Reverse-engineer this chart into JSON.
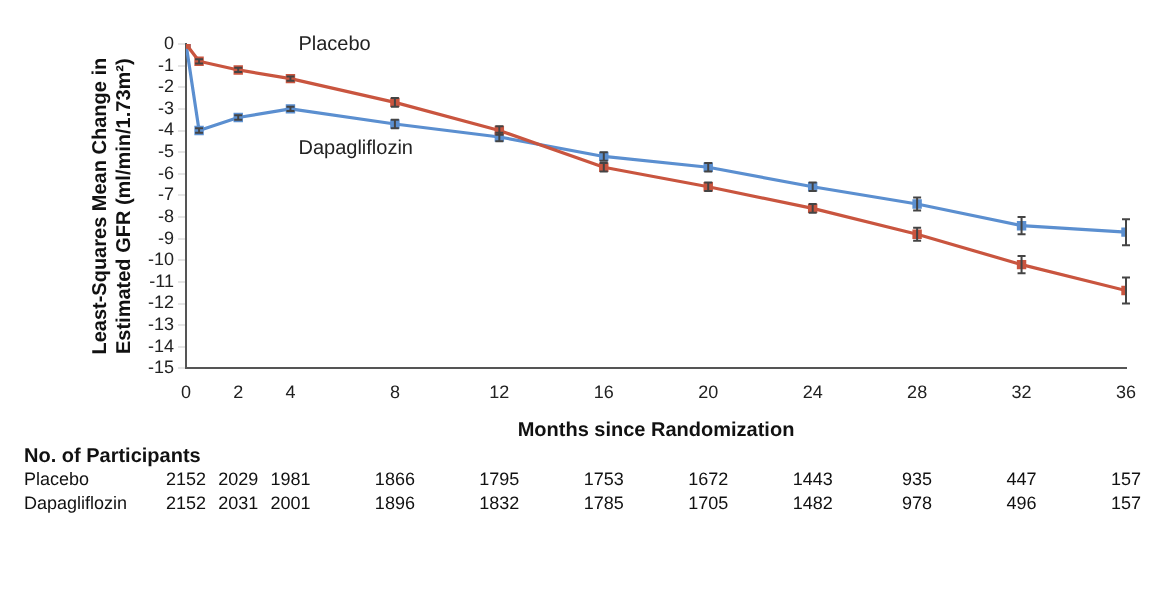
{
  "chart_data": {
    "type": "line",
    "xlabel": "Months since Randomization",
    "ylabel": "Least-Squares Mean Change in Estimated GFR (ml/min/1.73m²)",
    "x": [
      0,
      0.5,
      2,
      4,
      8,
      12,
      16,
      20,
      24,
      28,
      32,
      36
    ],
    "series": [
      {
        "name": "Placebo",
        "color": "#c9553f",
        "values": [
          0,
          -0.8,
          -1.2,
          -1.6,
          -2.7,
          -4.0,
          -5.7,
          -6.6,
          -7.6,
          -8.8,
          -10.2,
          -11.4
        ],
        "errors": [
          null,
          0.1,
          0.1,
          0.1,
          0.2,
          0.2,
          0.2,
          0.2,
          0.2,
          0.3,
          0.4,
          0.6
        ]
      },
      {
        "name": "Dapagliflozin",
        "color": "#5b8fd0",
        "values": [
          0,
          -4.0,
          -3.4,
          -3.0,
          -3.7,
          -4.3,
          -5.2,
          -5.7,
          -6.6,
          -7.4,
          -8.4,
          -8.7
        ],
        "errors": [
          null,
          0.1,
          0.1,
          0.1,
          0.2,
          0.2,
          0.2,
          0.2,
          0.2,
          0.3,
          0.4,
          0.6
        ]
      }
    ],
    "xlim": [
      0,
      36
    ],
    "xticks": [
      0,
      2,
      4,
      8,
      12,
      16,
      20,
      24,
      28,
      32,
      36
    ],
    "ylim": [
      -15,
      0
    ],
    "yticks": [
      0,
      -1,
      -2,
      -3,
      -4,
      -5,
      -6,
      -7,
      -8,
      -9,
      -10,
      -11,
      -12,
      -13,
      -14,
      -15
    ],
    "grid": false,
    "legend": false,
    "marker": "square",
    "line_style": "solid",
    "annotations": [
      "No. of Participants",
      "Placebo 2152 2029 1981 1866 1795 1753 1672 1443 935 447 157",
      "Dapagliflozin 2152 2031 2001 1896 1832 1785 1705 1482 978 496 157"
    ]
  }
}
